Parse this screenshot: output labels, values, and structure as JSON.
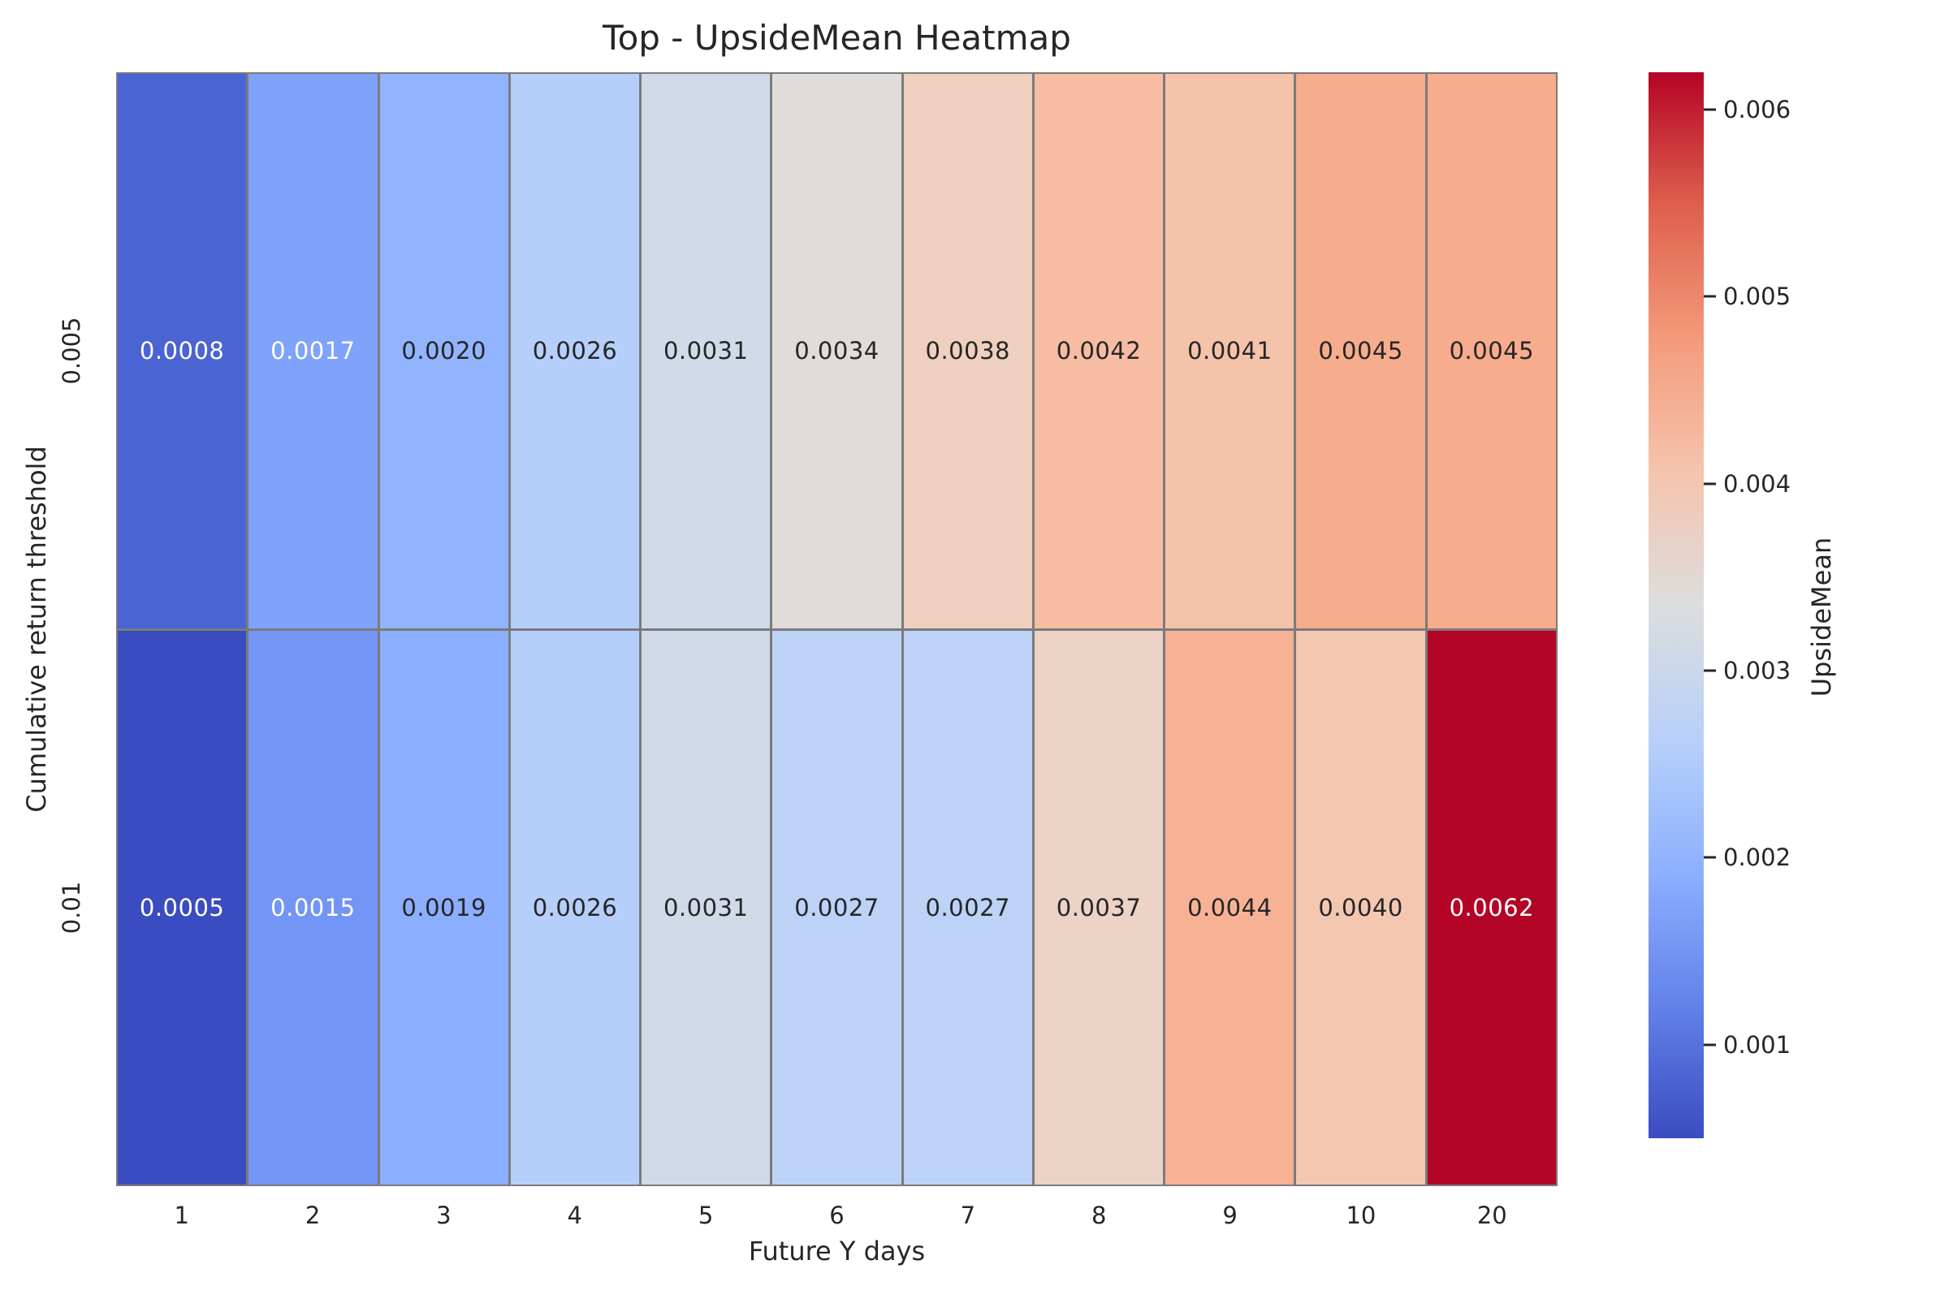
{
  "chart_data": {
    "type": "heatmap",
    "title": "Top - UpsideMean Heatmap",
    "xlabel": "Future Y days",
    "ylabel": "Cumulative return threshold",
    "x_categories": [
      "1",
      "2",
      "3",
      "4",
      "5",
      "6",
      "7",
      "8",
      "9",
      "10",
      "20"
    ],
    "y_categories": [
      "0.005",
      "0.01"
    ],
    "rows": [
      {
        "threshold": "0.005",
        "values": [
          "0.0008",
          "0.0017",
          "0.0020",
          "0.0026",
          "0.0031",
          "0.0034",
          "0.0038",
          "0.0042",
          "0.0041",
          "0.0045",
          "0.0045"
        ],
        "cell_colors": [
          "#4A64D3",
          "#7FA2FA",
          "#92B4FE",
          "#B6CFFA",
          "#D1DAE9",
          "#DFDCDA",
          "#EFD0BF",
          "#F7BDA3",
          "#F5C2AA",
          "#F7AC8E",
          "#F7AC8E"
        ],
        "text_colors": [
          "#FFFFFF",
          "#FFFFFF",
          "#262626",
          "#262626",
          "#262626",
          "#262626",
          "#262626",
          "#262626",
          "#262626",
          "#262626",
          "#262626"
        ]
      },
      {
        "threshold": "0.01",
        "values": [
          "0.0005",
          "0.0015",
          "0.0019",
          "0.0026",
          "0.0031",
          "0.0027",
          "0.0027",
          "0.0037",
          "0.0044",
          "0.0040",
          "0.0062"
        ],
        "cell_colors": [
          "#3B4CC0",
          "#7395F5",
          "#8BAEFE",
          "#B6CFFA",
          "#D1DAE9",
          "#BCD2F7",
          "#BCD2F7",
          "#ECD3C5",
          "#F7B295",
          "#F4C7B1",
          "#B40426"
        ],
        "text_colors": [
          "#FFFFFF",
          "#FFFFFF",
          "#262626",
          "#262626",
          "#262626",
          "#262626",
          "#262626",
          "#262626",
          "#262626",
          "#262626",
          "#FFFFFF"
        ]
      }
    ],
    "grid_line_color": "#7B7B7B",
    "text_color": "#262626",
    "background": "#FFFFFF",
    "colorbar": {
      "label": "UpsideMean",
      "vmin": 0.0005,
      "vmax": 0.0062,
      "ticks": [
        {
          "label": "0.006",
          "value": 0.006
        },
        {
          "label": "0.005",
          "value": 0.005
        },
        {
          "label": "0.004",
          "value": 0.004
        },
        {
          "label": "0.003",
          "value": 0.003
        },
        {
          "label": "0.002",
          "value": 0.002
        },
        {
          "label": "0.001",
          "value": 0.001
        }
      ],
      "gradient_stops": [
        {
          "pos": 0,
          "color": "#B40426"
        },
        {
          "pos": 12.5,
          "color": "#DE604D"
        },
        {
          "pos": 25,
          "color": "#F49A7B"
        },
        {
          "pos": 37.5,
          "color": "#F5C4AD"
        },
        {
          "pos": 50,
          "color": "#DDDDDD"
        },
        {
          "pos": 62.5,
          "color": "#B8D0F9"
        },
        {
          "pos": 75,
          "color": "#8DB0FE"
        },
        {
          "pos": 87.5,
          "color": "#6282EA"
        },
        {
          "pos": 100,
          "color": "#3B4CC0"
        }
      ]
    }
  }
}
